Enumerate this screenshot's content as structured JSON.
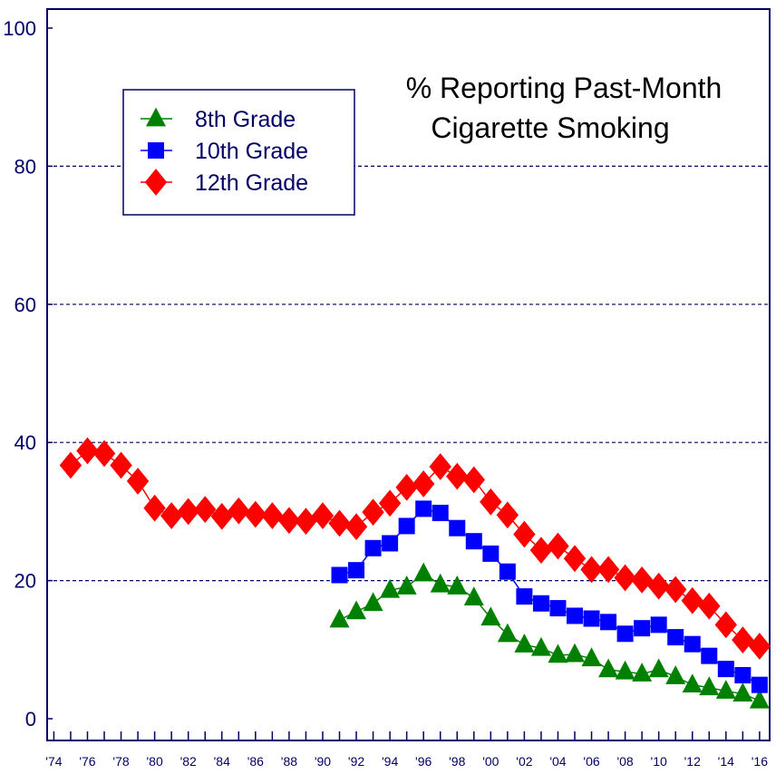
{
  "chart_data": {
    "type": "line",
    "title": [
      "% Reporting Past-Month",
      "Cigarette Smoking"
    ],
    "xlabel": "",
    "ylabel": "",
    "xlim": [
      1973.6,
      2016.6
    ],
    "ylim": [
      0,
      100
    ],
    "y_ticks": [
      0,
      20,
      40,
      60,
      80,
      100
    ],
    "y_gridlines": [
      20,
      40,
      60,
      80
    ],
    "grid": "horizontal dashed",
    "x_tick_labels": [
      "'74",
      "'76",
      "'78",
      "'80",
      "'82",
      "'84",
      "'86",
      "'88",
      "'90",
      "'92",
      "'94",
      "'96",
      "'98",
      "'00",
      "'02",
      "'04",
      "'06",
      "'08",
      "'10",
      "'12",
      "'14",
      "'16"
    ],
    "legend_position": "top-left",
    "series": [
      {
        "name": "8th Grade",
        "color": "#008000",
        "marker": "triangle",
        "x": [
          1991,
          1992,
          1993,
          1994,
          1995,
          1996,
          1997,
          1998,
          1999,
          2000,
          2001,
          2002,
          2003,
          2004,
          2005,
          2006,
          2007,
          2008,
          2009,
          2010,
          2011,
          2012,
          2013,
          2014,
          2015,
          2016
        ],
        "values": [
          14.3,
          15.5,
          16.7,
          18.6,
          19.1,
          21.0,
          19.4,
          19.1,
          17.5,
          14.6,
          12.2,
          10.7,
          10.2,
          9.2,
          9.3,
          8.7,
          7.1,
          6.8,
          6.5,
          7.1,
          6.1,
          4.9,
          4.5,
          4.0,
          3.6,
          2.6
        ]
      },
      {
        "name": "10th Grade",
        "color": "#0000ff",
        "marker": "square",
        "x": [
          1991,
          1992,
          1993,
          1994,
          1995,
          1996,
          1997,
          1998,
          1999,
          2000,
          2001,
          2002,
          2003,
          2004,
          2005,
          2006,
          2007,
          2008,
          2009,
          2010,
          2011,
          2012,
          2013,
          2014,
          2015,
          2016
        ],
        "values": [
          20.8,
          21.5,
          24.7,
          25.4,
          27.9,
          30.4,
          29.8,
          27.6,
          25.7,
          23.9,
          21.3,
          17.7,
          16.7,
          16.0,
          14.9,
          14.5,
          14.0,
          12.3,
          13.1,
          13.6,
          11.8,
          10.8,
          9.1,
          7.2,
          6.3,
          4.9
        ]
      },
      {
        "name": "12th Grade",
        "color": "#ff0000",
        "marker": "diamond",
        "x": [
          1975,
          1976,
          1977,
          1978,
          1979,
          1980,
          1981,
          1982,
          1983,
          1984,
          1985,
          1986,
          1987,
          1988,
          1989,
          1990,
          1991,
          1992,
          1993,
          1994,
          1995,
          1996,
          1997,
          1998,
          1999,
          2000,
          2001,
          2002,
          2003,
          2004,
          2005,
          2006,
          2007,
          2008,
          2009,
          2010,
          2011,
          2012,
          2013,
          2014,
          2015,
          2016
        ],
        "values": [
          36.7,
          38.8,
          38.4,
          36.7,
          34.4,
          30.5,
          29.4,
          30.0,
          30.3,
          29.3,
          30.1,
          29.6,
          29.4,
          28.7,
          28.6,
          29.4,
          28.3,
          27.8,
          29.9,
          31.2,
          33.5,
          34.0,
          36.5,
          35.1,
          34.6,
          31.4,
          29.5,
          26.7,
          24.4,
          25.0,
          23.2,
          21.6,
          21.6,
          20.4,
          20.1,
          19.2,
          18.7,
          17.1,
          16.3,
          13.6,
          11.4,
          10.5
        ]
      }
    ]
  }
}
